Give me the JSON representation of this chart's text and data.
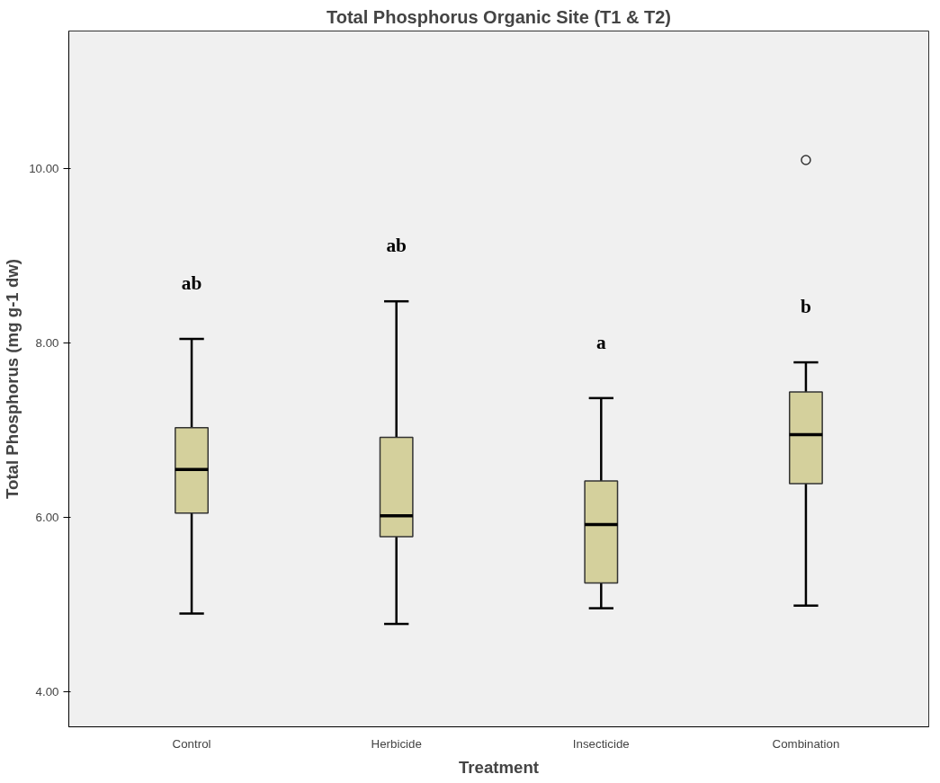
{
  "chart_data": {
    "type": "box",
    "title": "Total Phosphorus Organic Site (T1 & T2)",
    "xlabel": "Treatment",
    "ylabel": "Total Phosphorus (mg g-1 dw)",
    "categories": [
      "Control",
      "Herbicide",
      "Insecticide",
      "Combination"
    ],
    "color": "#d4d09c",
    "boxes": [
      {
        "low": 4.9,
        "q1": 6.05,
        "median": 6.55,
        "q3": 7.03,
        "high": 8.05
      },
      {
        "low": 4.78,
        "q1": 5.78,
        "median": 6.02,
        "q3": 6.92,
        "high": 8.48
      },
      {
        "low": 4.96,
        "q1": 5.25,
        "median": 5.92,
        "q3": 6.42,
        "high": 7.37
      },
      {
        "low": 4.99,
        "q1": 6.39,
        "median": 6.95,
        "q3": 7.44,
        "high": 7.78,
        "outliers": [
          10.1
        ]
      }
    ],
    "ylim": [
      3.6,
      11.58
    ],
    "yticks": [
      {
        "value": 4,
        "label": "4.00"
      },
      {
        "value": 6,
        "label": "6.00"
      },
      {
        "value": 8,
        "label": "8.00"
      },
      {
        "value": 10,
        "label": "10.00"
      }
    ],
    "grid": false,
    "annotations": [
      "ab",
      "ab",
      "a",
      "b"
    ]
  }
}
